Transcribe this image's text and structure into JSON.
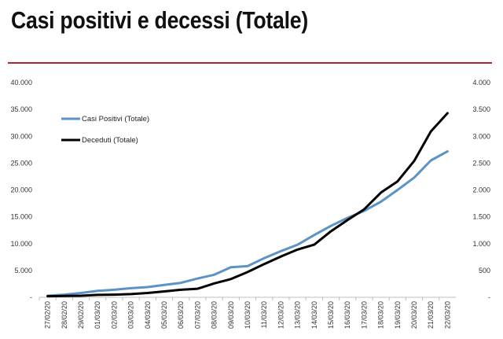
{
  "slide": {
    "title": "Casi positivi e decessi (Totale)"
  },
  "chart_data": {
    "type": "line",
    "title": "",
    "xlabel": "",
    "y_left": {
      "ylim": [
        0,
        40000
      ],
      "ticks": [
        0,
        5000,
        10000,
        15000,
        20000,
        25000,
        30000,
        35000,
        40000
      ],
      "tick_labels": [
        "-",
        "5.000",
        "10.000",
        "15.000",
        "20.000",
        "25.000",
        "30.000",
        "35.000",
        "40.000"
      ]
    },
    "y_right": {
      "ylim": [
        0,
        4000
      ],
      "ticks": [
        0,
        500,
        1000,
        1500,
        2000,
        2500,
        3000,
        3500,
        4000
      ],
      "tick_labels": [
        "-",
        "500",
        "1.000",
        "1.500",
        "2.000",
        "2.500",
        "3.000",
        "3.500",
        "4.000"
      ]
    },
    "categories": [
      "27/02/20",
      "28/02/20",
      "29/02/20",
      "01/03/20",
      "02/03/20",
      "03/03/20",
      "04/03/20",
      "05/03/20",
      "06/03/20",
      "07/03/20",
      "08/03/20",
      "09/03/20",
      "10/03/20",
      "11/03/20",
      "12/03/20",
      "13/03/20",
      "14/03/20",
      "15/03/20",
      "16/03/20",
      "17/03/20",
      "18/03/20",
      "19/03/20",
      "20/03/20",
      "21/03/20",
      "22/03/20"
    ],
    "series": [
      {
        "name": "Casi Positivi (Totale)",
        "axis": "left",
        "color": "#5b93c7",
        "values": [
          300,
          500,
          800,
          1200,
          1400,
          1700,
          1900,
          2300,
          2700,
          3500,
          4200,
          5600,
          5800,
          7300,
          8600,
          9800,
          11600,
          13300,
          14800,
          16100,
          17800,
          20000,
          22300,
          25500,
          27200
        ]
      },
      {
        "name": "Deceduti (Totale)",
        "axis": "right",
        "color": "#000000",
        "values": [
          20,
          25,
          30,
          45,
          50,
          60,
          80,
          110,
          140,
          160,
          260,
          340,
          470,
          620,
          760,
          890,
          980,
          1230,
          1440,
          1640,
          1950,
          2160,
          2540,
          3090,
          3430
        ]
      }
    ],
    "legend_position": "top-left",
    "grid": false
  }
}
